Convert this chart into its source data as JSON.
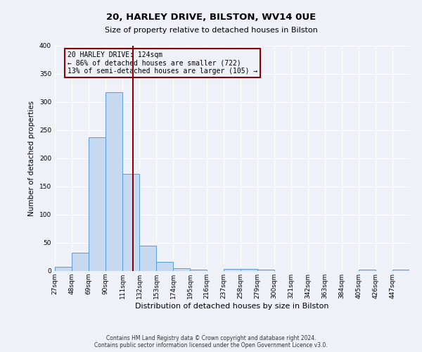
{
  "title": "20, HARLEY DRIVE, BILSTON, WV14 0UE",
  "subtitle": "Size of property relative to detached houses in Bilston",
  "xlabel": "Distribution of detached houses by size in Bilston",
  "ylabel": "Number of detached properties",
  "bin_labels": [
    "27sqm",
    "48sqm",
    "69sqm",
    "90sqm",
    "111sqm",
    "132sqm",
    "153sqm",
    "174sqm",
    "195sqm",
    "216sqm",
    "237sqm",
    "258sqm",
    "279sqm",
    "300sqm",
    "321sqm",
    "342sqm",
    "363sqm",
    "384sqm",
    "405sqm",
    "426sqm",
    "447sqm"
  ],
  "bin_edges": [
    27,
    48,
    69,
    90,
    111,
    132,
    153,
    174,
    195,
    216,
    237,
    258,
    279,
    300,
    321,
    342,
    363,
    384,
    405,
    426,
    447
  ],
  "bin_width": 21,
  "bar_heights": [
    8,
    32,
    238,
    318,
    173,
    45,
    16,
    5,
    3,
    0,
    4,
    4,
    3,
    0,
    0,
    0,
    0,
    0,
    3,
    0,
    2
  ],
  "bar_color": "#c6d9f0",
  "bar_edge_color": "#5b9bd5",
  "vline_x": 124,
  "vline_color": "#8B0000",
  "annotation_line1": "20 HARLEY DRIVE: 124sqm",
  "annotation_line2": "← 86% of detached houses are smaller (722)",
  "annotation_line3": "13% of semi-detached houses are larger (105) →",
  "annotation_box_color": "#8B0000",
  "ylim": [
    0,
    400
  ],
  "yticks": [
    0,
    50,
    100,
    150,
    200,
    250,
    300,
    350,
    400
  ],
  "footer_line1": "Contains HM Land Registry data © Crown copyright and database right 2024.",
  "footer_line2": "Contains public sector information licensed under the Open Government Licence v3.0.",
  "background_color": "#eef2f8",
  "grid_color": "#ffffff",
  "title_fontsize": 9.5,
  "subtitle_fontsize": 8,
  "ylabel_fontsize": 7.5,
  "xlabel_fontsize": 8,
  "tick_fontsize": 6.5,
  "annotation_fontsize": 7,
  "footer_fontsize": 5.5
}
